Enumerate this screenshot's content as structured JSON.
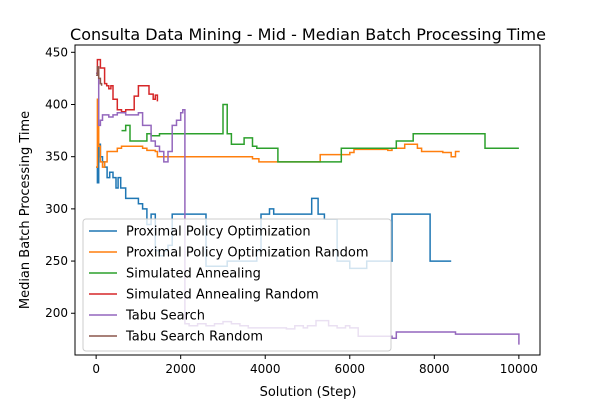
{
  "chart_data": {
    "type": "line",
    "title": "Consulta Data Mining - Mid - Median Batch Processing Time",
    "xlabel": "Solution (Step)",
    "ylabel": "Median Batch Processing Time",
    "xlim": [
      -500,
      10500
    ],
    "ylim": [
      160,
      457
    ],
    "xticks": [
      0,
      2000,
      4000,
      6000,
      8000,
      10000
    ],
    "yticks": [
      200,
      250,
      300,
      350,
      400,
      450
    ],
    "grid": false,
    "legend_position": "lower-left",
    "series": [
      {
        "name": "Proximal Policy Optimization",
        "color": "#1f77b4",
        "points": [
          [
            0,
            340
          ],
          [
            30,
            325
          ],
          [
            60,
            362
          ],
          [
            100,
            350
          ],
          [
            150,
            345
          ],
          [
            200,
            340
          ],
          [
            260,
            330
          ],
          [
            320,
            335
          ],
          [
            400,
            330
          ],
          [
            470,
            320
          ],
          [
            520,
            330
          ],
          [
            580,
            320
          ],
          [
            650,
            320
          ],
          [
            700,
            310
          ],
          [
            850,
            310
          ],
          [
            1000,
            305
          ],
          [
            1100,
            300
          ],
          [
            1200,
            285
          ],
          [
            1300,
            295
          ],
          [
            1400,
            260
          ],
          [
            1500,
            255
          ],
          [
            1600,
            260
          ],
          [
            1700,
            265
          ],
          [
            1800,
            295
          ],
          [
            2000,
            295
          ],
          [
            2200,
            295
          ],
          [
            2500,
            295
          ],
          [
            2600,
            245
          ],
          [
            3000,
            245
          ],
          [
            3100,
            250
          ],
          [
            3500,
            250
          ],
          [
            3700,
            250
          ],
          [
            3800,
            260
          ],
          [
            3900,
            295
          ],
          [
            4100,
            300
          ],
          [
            4200,
            295
          ],
          [
            5000,
            295
          ],
          [
            5100,
            310
          ],
          [
            5250,
            295
          ],
          [
            5400,
            290
          ],
          [
            5550,
            290
          ],
          [
            5700,
            250
          ],
          [
            6000,
            243
          ],
          [
            6200,
            243
          ],
          [
            6400,
            250
          ],
          [
            6500,
            250
          ],
          [
            6700,
            250
          ],
          [
            7000,
            295
          ],
          [
            7800,
            295
          ],
          [
            7900,
            250
          ],
          [
            8200,
            250
          ],
          [
            8400,
            250
          ]
        ]
      },
      {
        "name": "Proximal Policy Optimization Random",
        "color": "#ff7f0e",
        "points": [
          [
            0,
            340
          ],
          [
            30,
            405
          ],
          [
            60,
            360
          ],
          [
            100,
            345
          ],
          [
            150,
            340
          ],
          [
            200,
            345
          ],
          [
            260,
            355
          ],
          [
            400,
            355
          ],
          [
            500,
            358
          ],
          [
            600,
            360
          ],
          [
            800,
            360
          ],
          [
            1100,
            358
          ],
          [
            1200,
            356
          ],
          [
            1400,
            355
          ],
          [
            1450,
            350
          ],
          [
            2000,
            350
          ],
          [
            3600,
            350
          ],
          [
            3700,
            348
          ],
          [
            3850,
            345
          ],
          [
            5200,
            345
          ],
          [
            5300,
            352
          ],
          [
            6000,
            354
          ],
          [
            6100,
            357
          ],
          [
            6300,
            357
          ],
          [
            6800,
            357
          ],
          [
            6900,
            356
          ],
          [
            7000,
            358
          ],
          [
            7300,
            362
          ],
          [
            7600,
            358
          ],
          [
            7700,
            355
          ],
          [
            7800,
            355
          ],
          [
            8000,
            355
          ],
          [
            8200,
            354
          ],
          [
            8400,
            350
          ],
          [
            8500,
            355
          ],
          [
            8600,
            355
          ]
        ]
      },
      {
        "name": "Simulated Annealing",
        "color": "#2ca02c",
        "points": [
          [
            600,
            375
          ],
          [
            700,
            380
          ],
          [
            800,
            365
          ],
          [
            1100,
            365
          ],
          [
            1200,
            372
          ],
          [
            1300,
            370
          ],
          [
            1500,
            372
          ],
          [
            2900,
            372
          ],
          [
            3000,
            400
          ],
          [
            3100,
            372
          ],
          [
            3200,
            362
          ],
          [
            3400,
            362
          ],
          [
            3500,
            368
          ],
          [
            3700,
            360
          ],
          [
            3800,
            358
          ],
          [
            4200,
            358
          ],
          [
            4300,
            345
          ],
          [
            5700,
            345
          ],
          [
            5800,
            358
          ],
          [
            7000,
            358
          ],
          [
            7100,
            365
          ],
          [
            7400,
            365
          ],
          [
            7500,
            372
          ],
          [
            9100,
            372
          ],
          [
            9200,
            358
          ],
          [
            10000,
            358
          ]
        ]
      },
      {
        "name": "Simulated Annealing Random",
        "color": "#d62728",
        "points": [
          [
            0,
            430
          ],
          [
            30,
            443
          ],
          [
            100,
            435
          ],
          [
            200,
            420
          ],
          [
            250,
            418
          ],
          [
            300,
            415
          ],
          [
            350,
            418
          ],
          [
            400,
            405
          ],
          [
            500,
            395
          ],
          [
            600,
            393
          ],
          [
            700,
            395
          ],
          [
            800,
            395
          ],
          [
            900,
            408
          ],
          [
            1000,
            418
          ],
          [
            1150,
            418
          ],
          [
            1250,
            410
          ],
          [
            1350,
            405
          ],
          [
            1400,
            409
          ],
          [
            1450,
            403
          ]
        ]
      },
      {
        "name": "Tabu Search",
        "color": "#9467bd",
        "points": [
          [
            0,
            430
          ],
          [
            60,
            380
          ],
          [
            100,
            385
          ],
          [
            150,
            390
          ],
          [
            200,
            390
          ],
          [
            300,
            388
          ],
          [
            400,
            390
          ],
          [
            500,
            392
          ],
          [
            700,
            390
          ],
          [
            900,
            390
          ],
          [
            1000,
            392
          ],
          [
            1100,
            380
          ],
          [
            1300,
            365
          ],
          [
            1400,
            360
          ],
          [
            1500,
            355
          ],
          [
            1600,
            345
          ],
          [
            1700,
            355
          ],
          [
            1800,
            380
          ],
          [
            1900,
            385
          ],
          [
            2000,
            392
          ],
          [
            2050,
            395
          ],
          [
            2100,
            190
          ],
          [
            2200,
            188
          ],
          [
            2400,
            190
          ],
          [
            2600,
            188
          ],
          [
            2800,
            190
          ],
          [
            3000,
            192
          ],
          [
            3200,
            190
          ],
          [
            3400,
            188
          ],
          [
            3600,
            186
          ],
          [
            4000,
            186
          ],
          [
            4200,
            186
          ],
          [
            4500,
            185
          ],
          [
            4700,
            188
          ],
          [
            4900,
            186
          ],
          [
            5000,
            188
          ],
          [
            5200,
            193
          ],
          [
            5500,
            188
          ],
          [
            5700,
            186
          ],
          [
            5900,
            188
          ],
          [
            6000,
            186
          ],
          [
            6200,
            178
          ],
          [
            6600,
            178
          ],
          [
            6900,
            178
          ],
          [
            7000,
            176
          ],
          [
            7100,
            182
          ],
          [
            8000,
            182
          ],
          [
            8500,
            180
          ],
          [
            9500,
            180
          ],
          [
            9800,
            180
          ],
          [
            9950,
            180
          ],
          [
            10000,
            170
          ]
        ]
      },
      {
        "name": "Tabu Search Random",
        "color": "#8c564b",
        "points": [
          [
            0,
            428
          ],
          [
            30,
            436
          ],
          [
            60,
            425
          ],
          [
            100,
            420
          ],
          [
            130,
            418
          ]
        ]
      }
    ]
  }
}
